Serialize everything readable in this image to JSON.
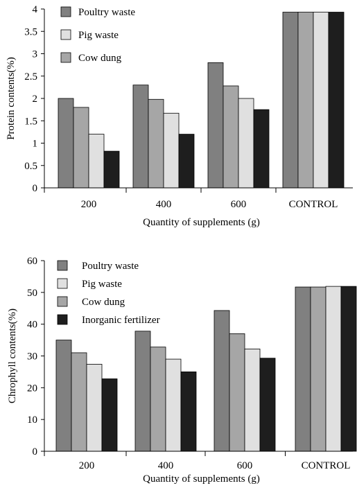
{
  "chart_data": [
    {
      "type": "bar",
      "title": "",
      "xlabel": "Quantity of supplements (g)",
      "ylabel": "Protein contents(%)",
      "ylim": [
        0,
        4
      ],
      "yticks": [
        "0",
        "0.5",
        "1",
        "1.5",
        "2",
        "2.5",
        "3",
        "3.5",
        "4"
      ],
      "categories": [
        "200",
        "400",
        "600",
        "CONTROL"
      ],
      "legend_position": "top-left",
      "series": [
        {
          "name": "Poultry waste",
          "color": "#808080",
          "values": [
            2.0,
            2.3,
            2.8,
            3.93
          ]
        },
        {
          "name": "Cow dung",
          "color": "#a6a6a6",
          "values": [
            1.8,
            1.98,
            2.28,
            3.93
          ]
        },
        {
          "name": "Pig waste",
          "color": "#e0e0e0",
          "values": [
            1.2,
            1.67,
            2.0,
            3.93
          ]
        },
        {
          "name": "",
          "color": "#1e1e1e",
          "values": [
            0.82,
            1.2,
            1.75,
            3.93
          ]
        }
      ],
      "legend": [
        {
          "label": "Poultry waste",
          "color": "#808080"
        },
        {
          "label": "Pig waste",
          "color": "#e0e0e0"
        },
        {
          "label": "Cow dung",
          "color": "#a6a6a6"
        }
      ]
    },
    {
      "type": "bar",
      "title": "",
      "xlabel": "Quantity of supplements (g)",
      "ylabel": "Chrophyll contents(%)",
      "ylim": [
        0,
        60
      ],
      "yticks": [
        "0",
        "10",
        "20",
        "30",
        "40",
        "50",
        "60"
      ],
      "categories": [
        "200",
        "400",
        "600",
        "CONTROL"
      ],
      "legend_position": "top-left",
      "series": [
        {
          "name": "Poultry waste",
          "color": "#808080",
          "values": [
            35.0,
            37.8,
            44.3,
            51.7
          ]
        },
        {
          "name": "Cow dung",
          "color": "#a6a6a6",
          "values": [
            31.0,
            32.8,
            37.0,
            51.7
          ]
        },
        {
          "name": "Pig waste",
          "color": "#e0e0e0",
          "values": [
            27.4,
            29.0,
            32.2,
            51.9
          ]
        },
        {
          "name": "Inorganic fertilizer",
          "color": "#1e1e1e",
          "values": [
            22.8,
            25.0,
            29.3,
            51.9
          ]
        }
      ],
      "legend": [
        {
          "label": "Poultry waste",
          "color": "#808080"
        },
        {
          "label": "Pig waste",
          "color": "#e0e0e0"
        },
        {
          "label": "Cow dung",
          "color": "#a6a6a6"
        },
        {
          "label": "Inorganic fertilizer",
          "color": "#1e1e1e"
        }
      ]
    }
  ]
}
